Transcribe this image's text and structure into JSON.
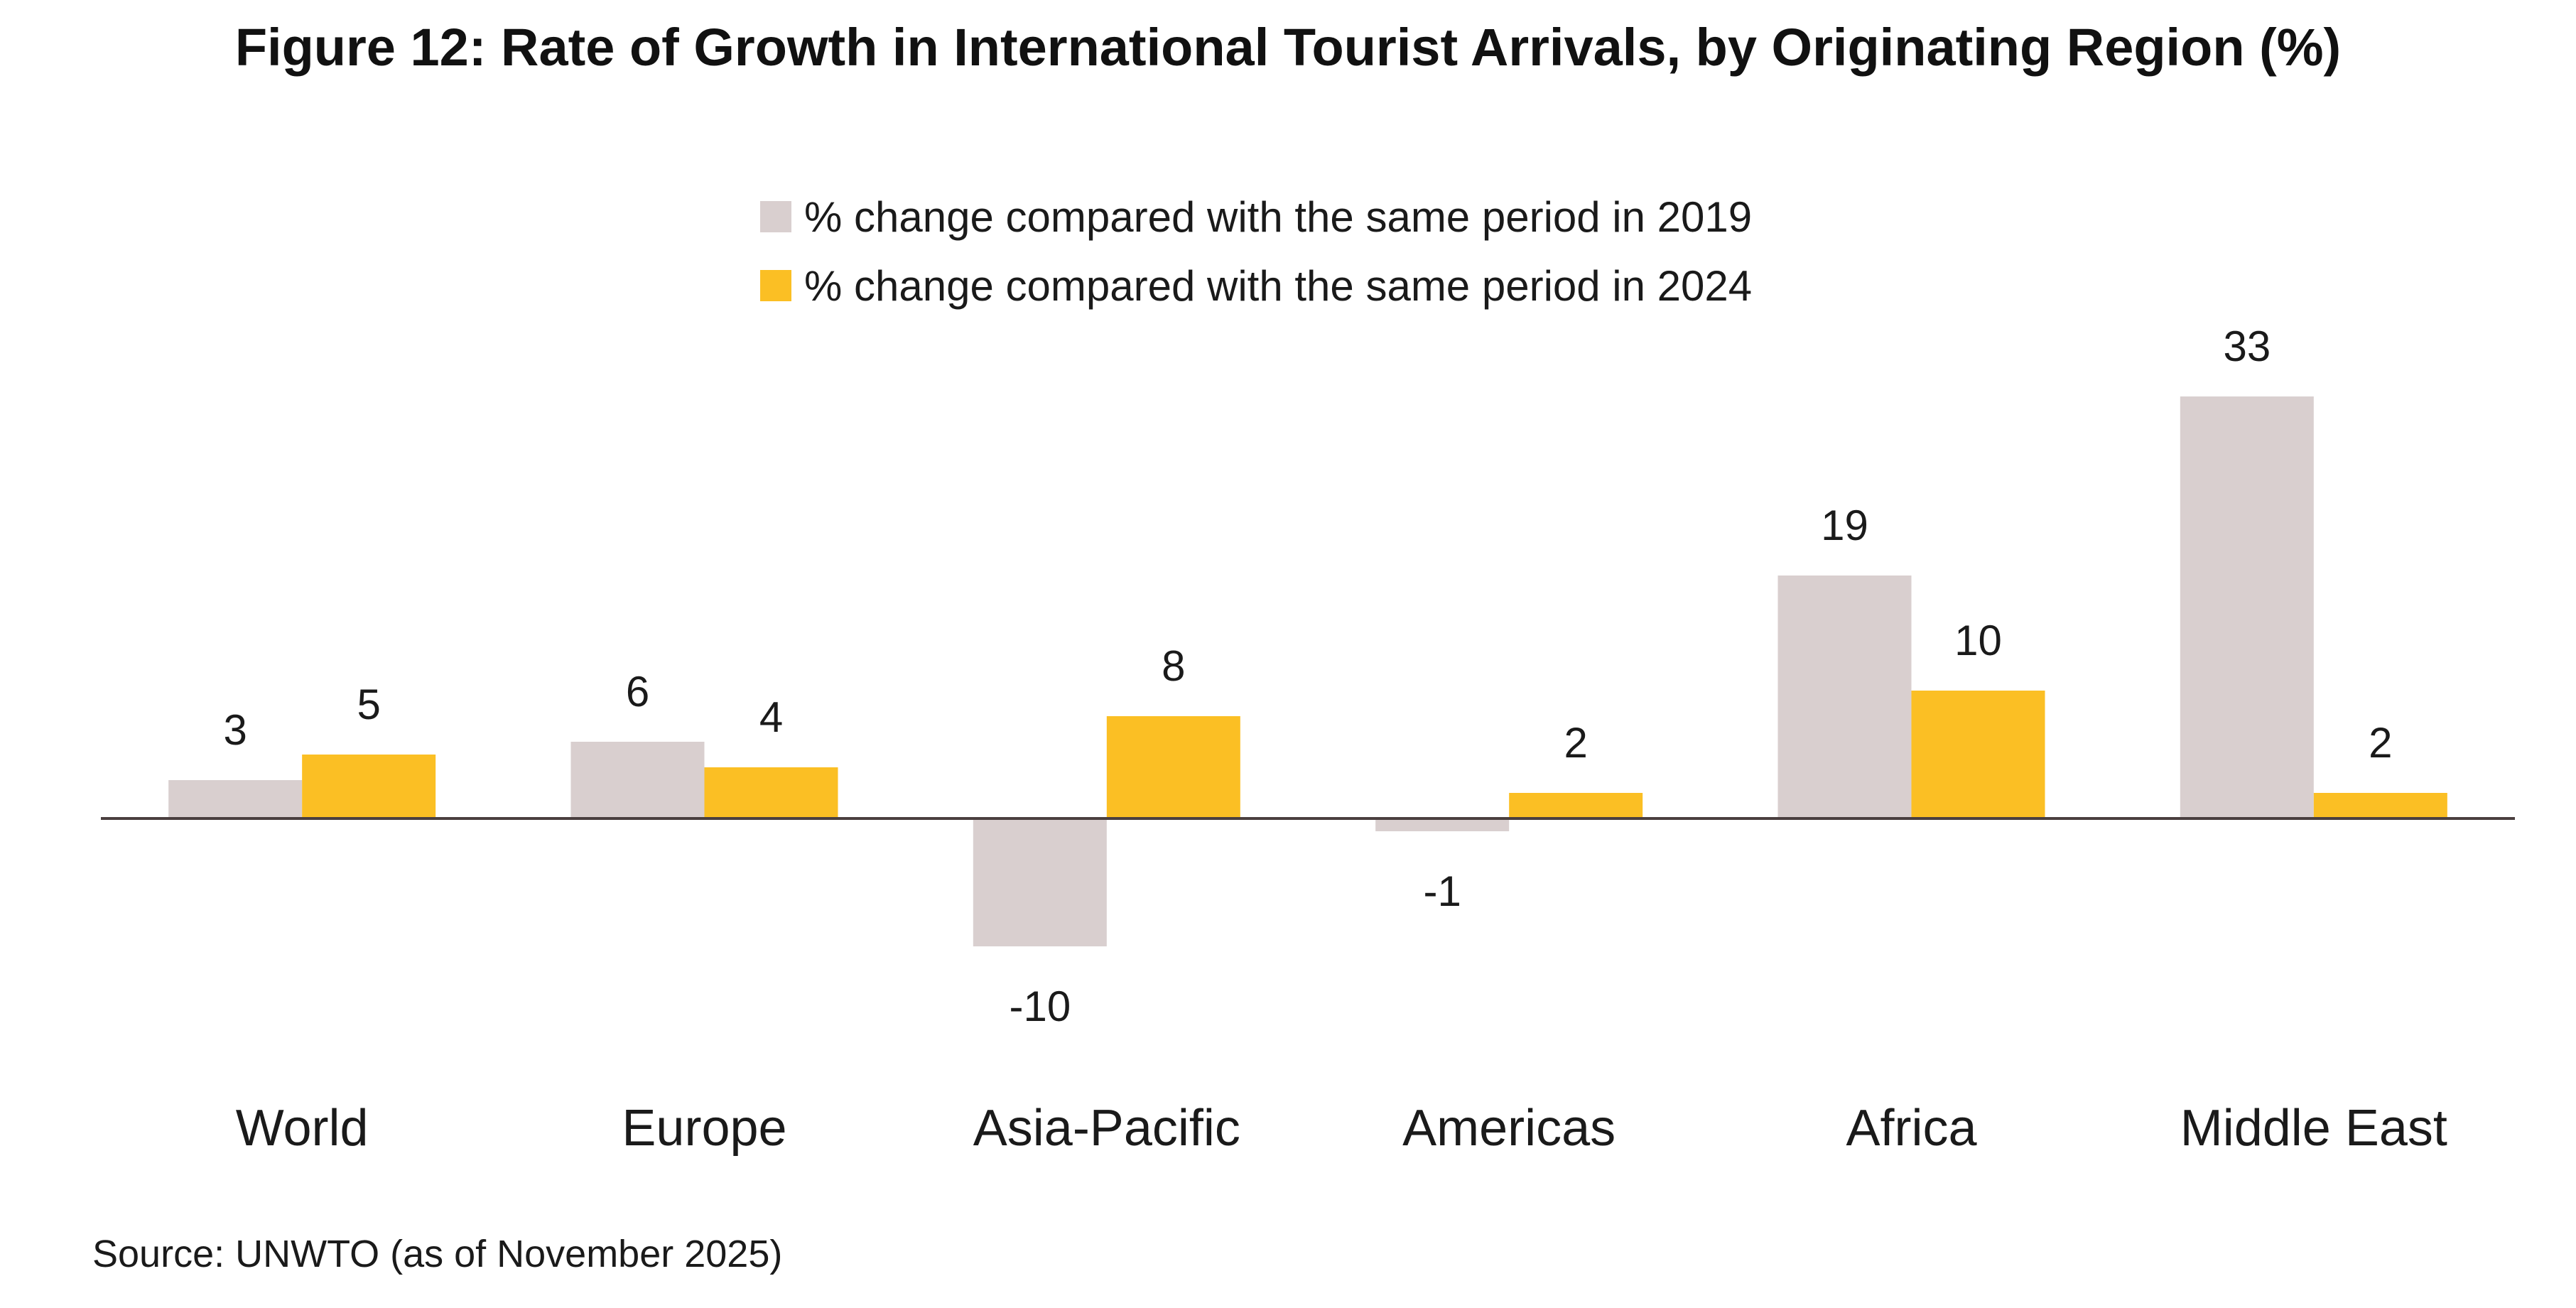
{
  "chart_data": {
    "type": "bar",
    "title": "Figure 12: Rate of Growth in International Tourist Arrivals, by Originating Region (%)",
    "categories": [
      "World",
      "Europe",
      "Asia-Pacific",
      "Americas",
      "Africa",
      "Middle East"
    ],
    "series": [
      {
        "name": "% change compared with the same period in 2019",
        "color": "#d9cfcf",
        "values": [
          3,
          6,
          -10,
          -1,
          19,
          33
        ]
      },
      {
        "name": "% change compared with the same period in 2024",
        "color": "#fbbf24",
        "values": [
          5,
          4,
          8,
          2,
          10,
          2
        ]
      }
    ],
    "ylim": [
      -15,
      34
    ],
    "grid": false,
    "axis_color": "#4a3f3f",
    "legend_position": "top-center",
    "xlabel": "",
    "ylabel": "",
    "source": "Source: UNWTO (as of November 2025)"
  }
}
